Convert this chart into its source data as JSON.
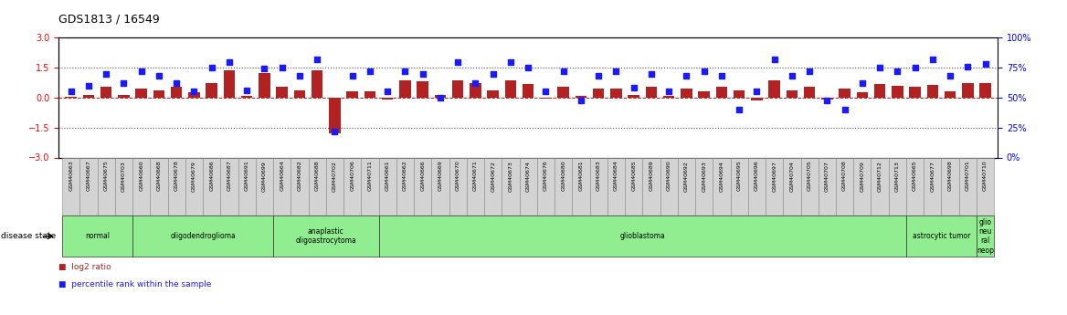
{
  "title": "GDS1813 / 16549",
  "samples": [
    "GSM40663",
    "GSM40667",
    "GSM40675",
    "GSM40703",
    "GSM40660",
    "GSM40668",
    "GSM40678",
    "GSM40679",
    "GSM40686",
    "GSM40687",
    "GSM40691",
    "GSM40699",
    "GSM40664",
    "GSM40682",
    "GSM40688",
    "GSM40702",
    "GSM40706",
    "GSM40711",
    "GSM40661",
    "GSM40662",
    "GSM40666",
    "GSM40669",
    "GSM40670",
    "GSM40671",
    "GSM40672",
    "GSM40673",
    "GSM40674",
    "GSM40676",
    "GSM40680",
    "GSM40681",
    "GSM40683",
    "GSM40684",
    "GSM40685",
    "GSM40689",
    "GSM40690",
    "GSM40692",
    "GSM40693",
    "GSM40694",
    "GSM40695",
    "GSM40696",
    "GSM40697",
    "GSM40704",
    "GSM40705",
    "GSM40707",
    "GSM40708",
    "GSM40709",
    "GSM40712",
    "GSM40713",
    "GSM40665",
    "GSM40677",
    "GSM40698",
    "GSM40701",
    "GSM40710"
  ],
  "log2_ratio": [
    0.05,
    0.12,
    0.55,
    0.15,
    0.45,
    0.35,
    0.55,
    0.25,
    0.75,
    1.35,
    0.08,
    1.25,
    0.55,
    0.35,
    1.35,
    -1.8,
    0.3,
    0.3,
    -0.08,
    0.85,
    0.8,
    0.15,
    0.85,
    0.75,
    0.35,
    0.85,
    0.7,
    -0.05,
    0.55,
    0.08,
    0.45,
    0.45,
    0.15,
    0.55,
    0.08,
    0.45,
    0.3,
    0.55,
    0.35,
    -0.12,
    0.85,
    0.35,
    0.55,
    -0.08,
    0.45,
    0.25,
    0.7,
    0.6,
    0.55,
    0.65,
    0.3,
    0.75,
    0.75
  ],
  "percentile": [
    55,
    60,
    70,
    62,
    72,
    68,
    62,
    55,
    75,
    80,
    56,
    74,
    75,
    68,
    82,
    22,
    68,
    72,
    55,
    72,
    70,
    50,
    80,
    62,
    70,
    80,
    75,
    55,
    72,
    48,
    68,
    72,
    58,
    70,
    55,
    68,
    72,
    68,
    40,
    55,
    82,
    68,
    72,
    48,
    40,
    62,
    75,
    72,
    75,
    82,
    68,
    76,
    78
  ],
  "groups": [
    {
      "label": "normal",
      "start": 0,
      "end": 4
    },
    {
      "label": "oligodendroglioma",
      "start": 4,
      "end": 12
    },
    {
      "label": "anaplastic\noligoastrocytoma",
      "start": 12,
      "end": 18
    },
    {
      "label": "glioblastoma",
      "start": 18,
      "end": 48
    },
    {
      "label": "astrocytic tumor",
      "start": 48,
      "end": 52
    },
    {
      "label": "glio\nneu\nral\nneop",
      "start": 52,
      "end": 53
    }
  ],
  "bar_color": "#b22222",
  "dot_color": "#1a1aff",
  "ylim_left": [
    -3,
    3
  ],
  "ylim_right": [
    0,
    100
  ],
  "yticks_left": [
    -3,
    -1.5,
    0,
    1.5,
    3
  ],
  "yticks_right": [
    0,
    25,
    50,
    75,
    100
  ],
  "hlines_dotted": [
    -1.5,
    1.5
  ],
  "hline_red_dashed": 0,
  "background_color": "#ffffff",
  "group_color": "#90ee90",
  "tick_box_color": "#d3d3d3"
}
